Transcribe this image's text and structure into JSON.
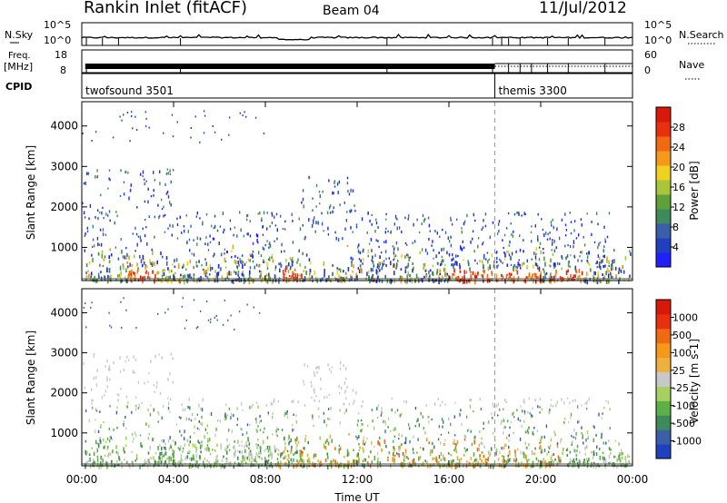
{
  "header": {
    "title": "Rankin Inlet (fitACF)",
    "beam": "Beam 04",
    "date": "11/Jul/2012"
  },
  "top_panels": {
    "nsky_label": "N.Sky",
    "nsky_ticks": [
      "10^5",
      "10^0"
    ],
    "nsearch_label": "N.Search",
    "nsearch_ticks": [
      "10^5",
      "10^0"
    ],
    "freq_label": "Freq.",
    "freq_unit": "[MHz]",
    "freq_ticks": [
      "18",
      "8"
    ],
    "nave_label": "Nave",
    "nave_ticks": [
      "60",
      "0"
    ],
    "cpid_label": "CPID",
    "cpid_segments": [
      {
        "name": "twofsound 3501",
        "start_hour": 0.0
      },
      {
        "name": "themis 3300",
        "start_hour": 18.0
      }
    ]
  },
  "chart_data": [
    {
      "type": "heatmap",
      "name": "power",
      "ylabel": "Slant Range [km]",
      "yticks": [
        "4000",
        "3000",
        "2000",
        "1000"
      ],
      "ylim": [
        180,
        4600
      ],
      "xlim": [
        0,
        24
      ],
      "colorbar": {
        "label": "Power [dB]",
        "ticks": [
          "28",
          "24",
          "20",
          "16",
          "12",
          "8",
          "4"
        ],
        "colors": [
          "#1f1fff",
          "#2040c0",
          "#3a5fa8",
          "#3f8a5a",
          "#5ea03a",
          "#a8c63c",
          "#f0d020",
          "#f39a1a",
          "#f06a12",
          "#e83010",
          "#d81808"
        ]
      }
    },
    {
      "type": "heatmap",
      "name": "velocity",
      "ylabel": "Slant Range [km]",
      "yticks": [
        "4000",
        "3000",
        "2000",
        "1000"
      ],
      "ylim": [
        180,
        4600
      ],
      "xlim": [
        0,
        24
      ],
      "colorbar": {
        "label": "Velocity [m s-1]",
        "ticks": [
          "1000",
          "500",
          "100",
          "25",
          "-25",
          "-100",
          "-500",
          "-1000"
        ],
        "colors": [
          "#2040c0",
          "#3a5fa8",
          "#3f8a5a",
          "#5cb046",
          "#a6d060",
          "#c8c8c8",
          "#f0b040",
          "#f39a1a",
          "#f06a12",
          "#e83010",
          "#d81808"
        ]
      }
    }
  ],
  "xaxis": {
    "ticks": [
      "00:00",
      "04:00",
      "08:00",
      "12:00",
      "16:00",
      "20:00",
      "00:00"
    ],
    "label": "Time UT"
  },
  "colors": {
    "line": "#000000",
    "grid": "#888888",
    "cpid_change": "#000000"
  }
}
